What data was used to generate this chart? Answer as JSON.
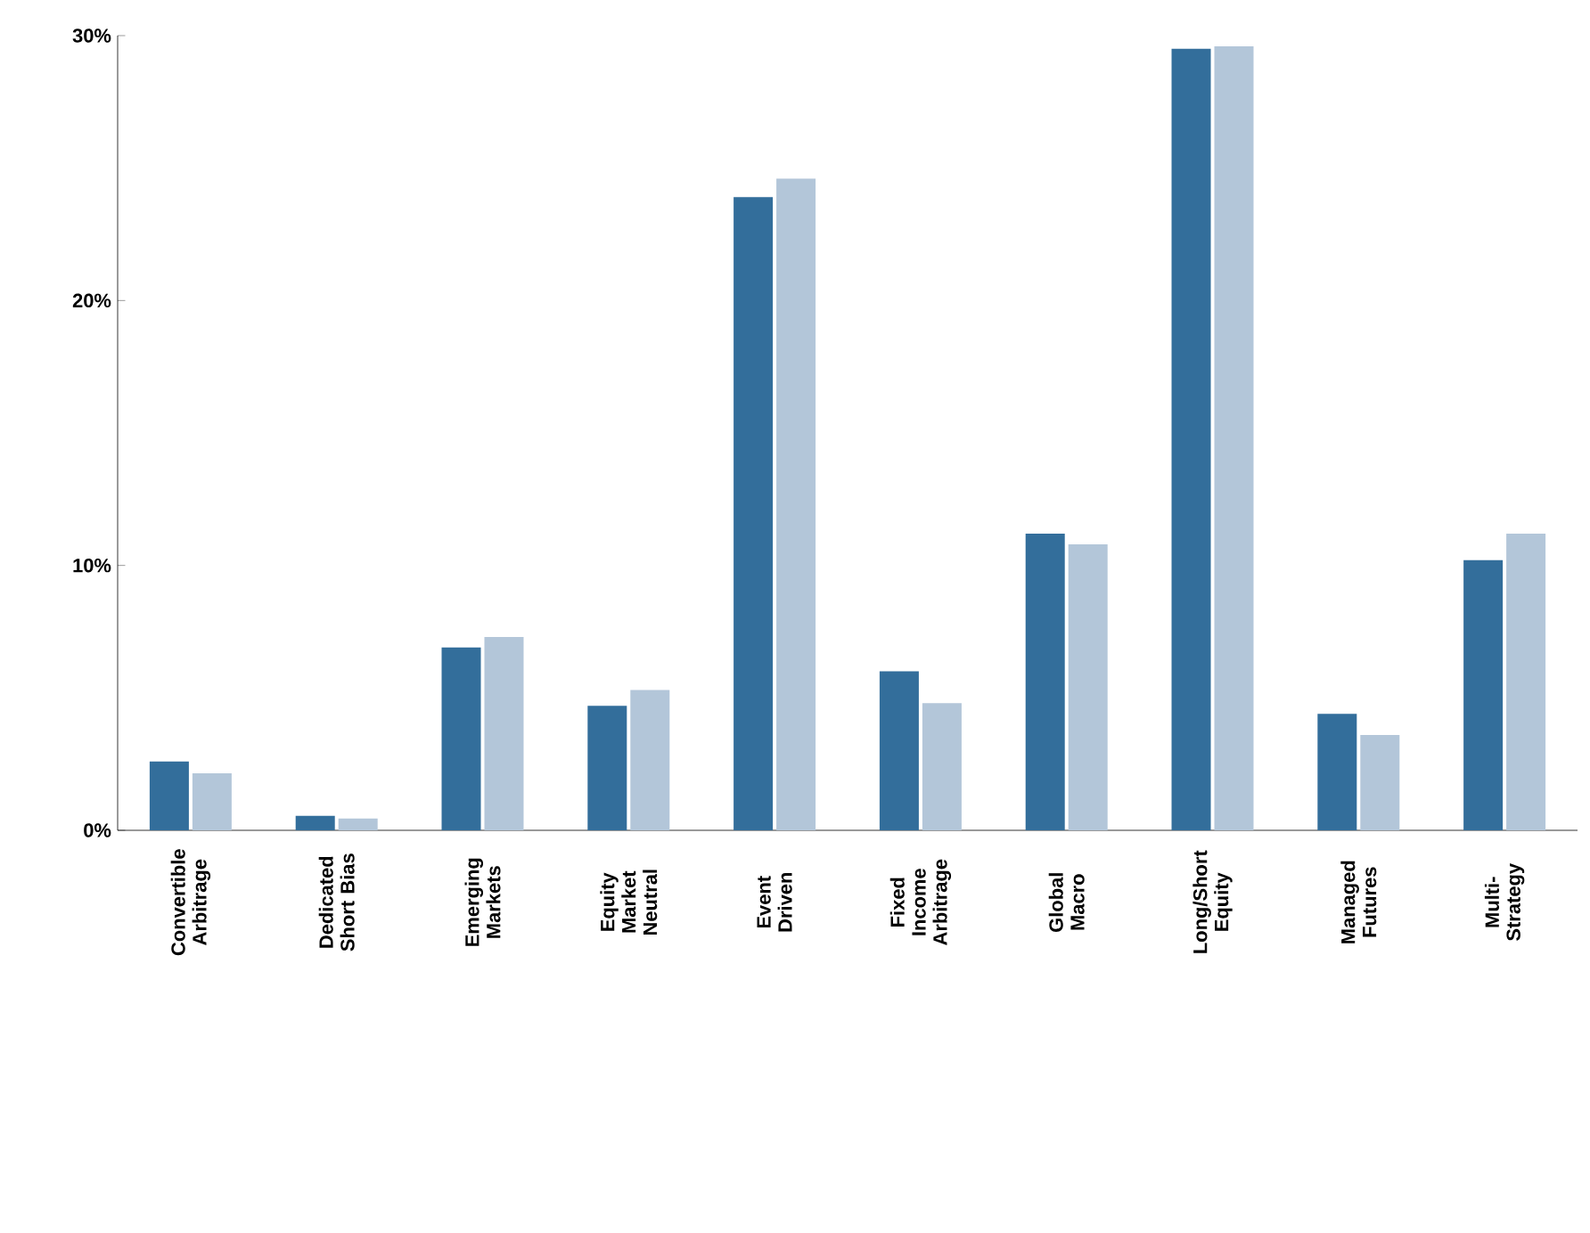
{
  "chart_data": {
    "type": "bar",
    "categories": [
      "Convertible Arbitrage",
      "Dedicated Short Bias",
      "Emerging Markets",
      "Equity Market Neutral",
      "Event Driven",
      "Fixed Income Arbitrage",
      "Global Macro",
      "Long/Short Equity",
      "Managed Futures",
      "Multi-Strategy"
    ],
    "series": [
      {
        "color": "#336e9b",
        "values": [
          2.6,
          0.55,
          6.9,
          4.7,
          23.9,
          6.0,
          11.2,
          29.5,
          4.4,
          10.2
        ]
      },
      {
        "color": "#b3c6d9",
        "values": [
          2.15,
          0.45,
          7.3,
          5.3,
          24.6,
          4.8,
          10.8,
          29.6,
          3.6,
          11.2
        ]
      }
    ],
    "ylim": [
      0,
      30
    ],
    "yticks": [
      {
        "value": 0,
        "label": "0%"
      },
      {
        "value": 10,
        "label": "10%"
      },
      {
        "value": 20,
        "label": "20%"
      },
      {
        "value": 30,
        "label": "30%"
      }
    ],
    "grid": false
  }
}
